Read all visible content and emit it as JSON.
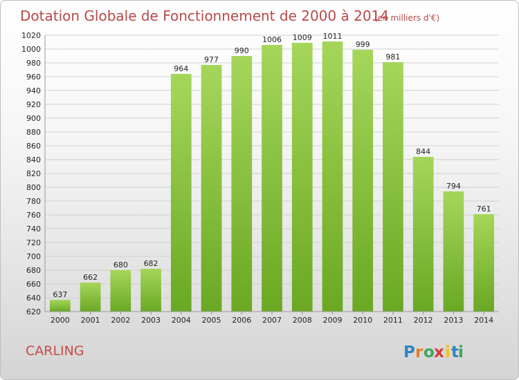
{
  "header": {
    "title": "Dotation Globale de Fonctionnement de 2000 à 2014",
    "subtitle": "(en milliers d'€)"
  },
  "footer": {
    "commune": "CARLING",
    "logo": "Proxiti",
    "logo_letters": [
      "P",
      "r",
      "o",
      "x",
      "i",
      "t",
      "i"
    ],
    "logo_colors": [
      "#2e86c1",
      "#e67e22",
      "#3ba55c",
      "#d63a3a",
      "#f1c40f",
      "#2e86c1",
      "#3ba55c"
    ]
  },
  "chart_data": {
    "type": "bar",
    "categories": [
      "2000",
      "2001",
      "2002",
      "2003",
      "2004",
      "2005",
      "2006",
      "2007",
      "2008",
      "2009",
      "2010",
      "2011",
      "2012",
      "2013",
      "2014"
    ],
    "values": [
      637,
      662,
      680,
      682,
      964,
      977,
      990,
      1006,
      1009,
      1011,
      999,
      981,
      844,
      794,
      761
    ],
    "title": "Dotation Globale de Fonctionnement de 2000 à 2014",
    "subtitle": "(en milliers d'€)",
    "ylim": [
      620,
      1020
    ],
    "yticks": [
      620,
      640,
      660,
      680,
      700,
      720,
      740,
      760,
      780,
      800,
      820,
      840,
      860,
      880,
      900,
      920,
      940,
      960,
      980,
      1000,
      1020
    ],
    "grid": true,
    "bar_color": "#8cc63f"
  }
}
